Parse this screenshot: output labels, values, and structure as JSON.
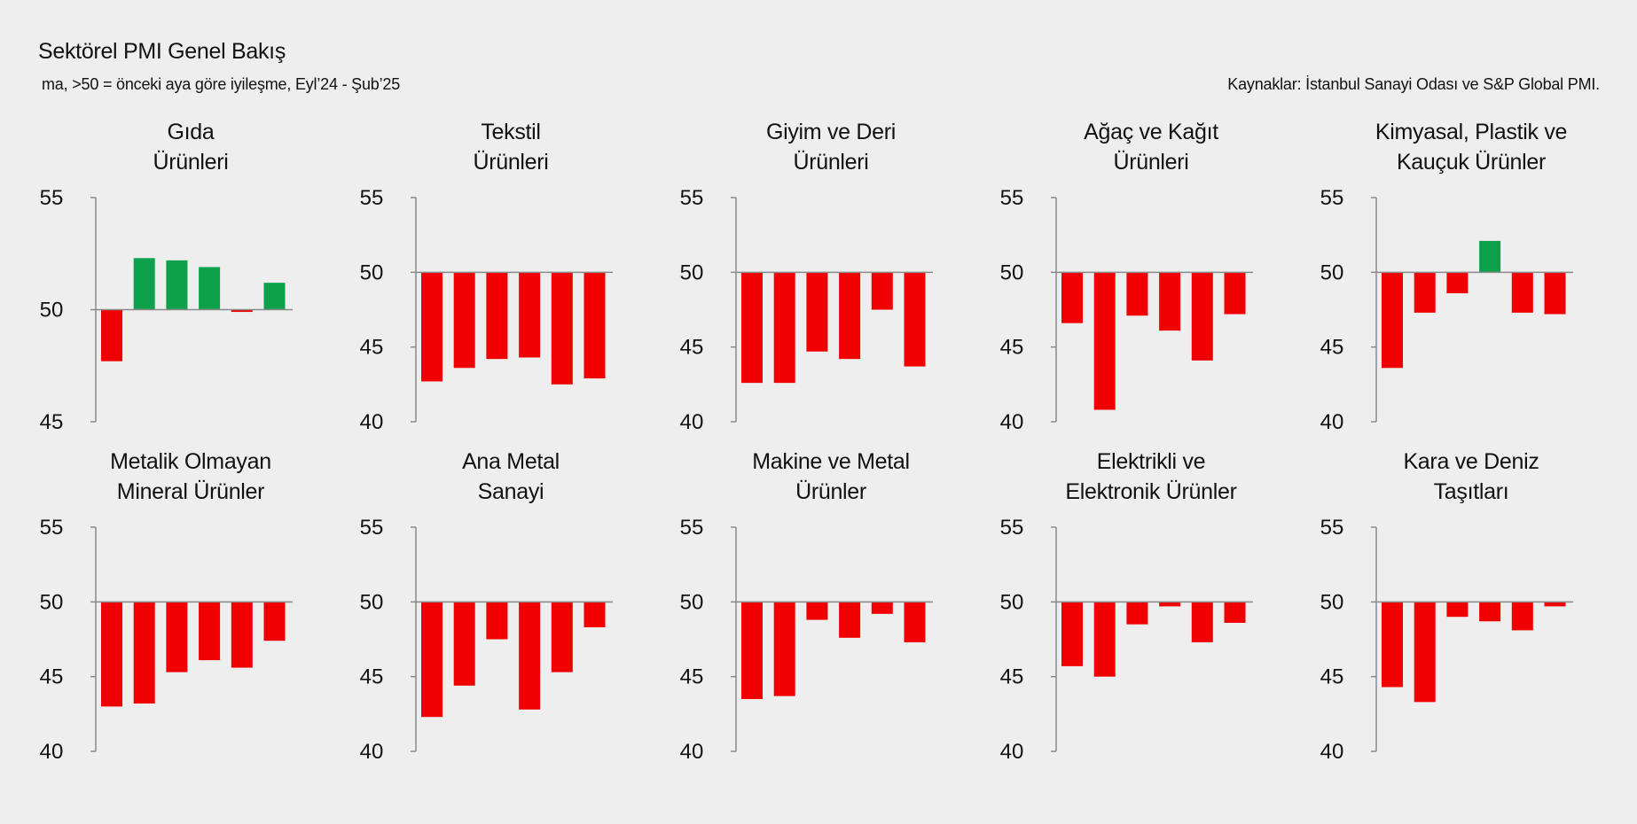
{
  "header": {
    "title": "Sektörel PMI Genel Bakış",
    "subtitle": "ma, >50 = önceki aya göre iyileşme, Eyl’24 - Şub’25",
    "source": "Kaynaklar: İstanbul Sanayi Odası ve S&P Global PMI."
  },
  "colors": {
    "positive": "#0ea14b",
    "negative": "#f00000",
    "axis": "#8a8a8a"
  },
  "chart_data": [
    {
      "type": "bar",
      "title_lines": [
        "Gıda",
        "Ürünleri"
      ],
      "ylim": [
        45,
        55
      ],
      "yticks": [
        45,
        50,
        55
      ],
      "values": [
        47.7,
        52.3,
        52.2,
        51.9,
        49.9,
        51.2
      ]
    },
    {
      "type": "bar",
      "title_lines": [
        "Tekstil",
        "Ürünleri"
      ],
      "ylim": [
        40,
        55
      ],
      "yticks": [
        40,
        45,
        50,
        55
      ],
      "values": [
        42.7,
        43.6,
        44.2,
        44.3,
        42.5,
        42.9
      ]
    },
    {
      "type": "bar",
      "title_lines": [
        "Giyim ve Deri",
        "Ürünleri"
      ],
      "ylim": [
        40,
        55
      ],
      "yticks": [
        40,
        45,
        50,
        55
      ],
      "values": [
        42.6,
        42.6,
        44.7,
        44.2,
        47.5,
        43.7
      ]
    },
    {
      "type": "bar",
      "title_lines": [
        "Ağaç ve Kağıt",
        "Ürünleri"
      ],
      "ylim": [
        40,
        55
      ],
      "yticks": [
        40,
        45,
        50,
        55
      ],
      "values": [
        46.6,
        40.8,
        47.1,
        46.1,
        44.1,
        47.2
      ]
    },
    {
      "type": "bar",
      "title_lines": [
        "Kimyasal, Plastik ve",
        "Kauçuk Ürünler"
      ],
      "ylim": [
        40,
        55
      ],
      "yticks": [
        40,
        45,
        50,
        55
      ],
      "values": [
        43.6,
        47.3,
        48.6,
        52.1,
        47.3,
        47.2
      ]
    },
    {
      "type": "bar",
      "title_lines": [
        "Metalik Olmayan",
        "Mineral Ürünler"
      ],
      "ylim": [
        40,
        55
      ],
      "yticks": [
        40,
        45,
        50,
        55
      ],
      "values": [
        43.0,
        43.2,
        45.3,
        46.1,
        45.6,
        47.4
      ]
    },
    {
      "type": "bar",
      "title_lines": [
        "Ana Metal",
        "Sanayi"
      ],
      "ylim": [
        40,
        55
      ],
      "yticks": [
        40,
        45,
        50,
        55
      ],
      "values": [
        42.3,
        44.4,
        47.5,
        42.8,
        45.3,
        48.3
      ]
    },
    {
      "type": "bar",
      "title_lines": [
        "Makine ve Metal",
        "Ürünler"
      ],
      "ylim": [
        40,
        55
      ],
      "yticks": [
        40,
        45,
        50,
        55
      ],
      "values": [
        43.5,
        43.7,
        48.8,
        47.6,
        49.2,
        47.3
      ]
    },
    {
      "type": "bar",
      "title_lines": [
        "Elektrikli ve",
        "Elektronik Ürünler"
      ],
      "ylim": [
        40,
        55
      ],
      "yticks": [
        40,
        45,
        50,
        55
      ],
      "values": [
        45.7,
        45.0,
        48.5,
        49.7,
        47.3,
        48.6
      ]
    },
    {
      "type": "bar",
      "title_lines": [
        "Kara ve Deniz",
        "Taşıtları"
      ],
      "ylim": [
        40,
        55
      ],
      "yticks": [
        40,
        45,
        50,
        55
      ],
      "values": [
        44.3,
        43.3,
        49.0,
        48.7,
        48.1,
        49.7
      ]
    }
  ]
}
